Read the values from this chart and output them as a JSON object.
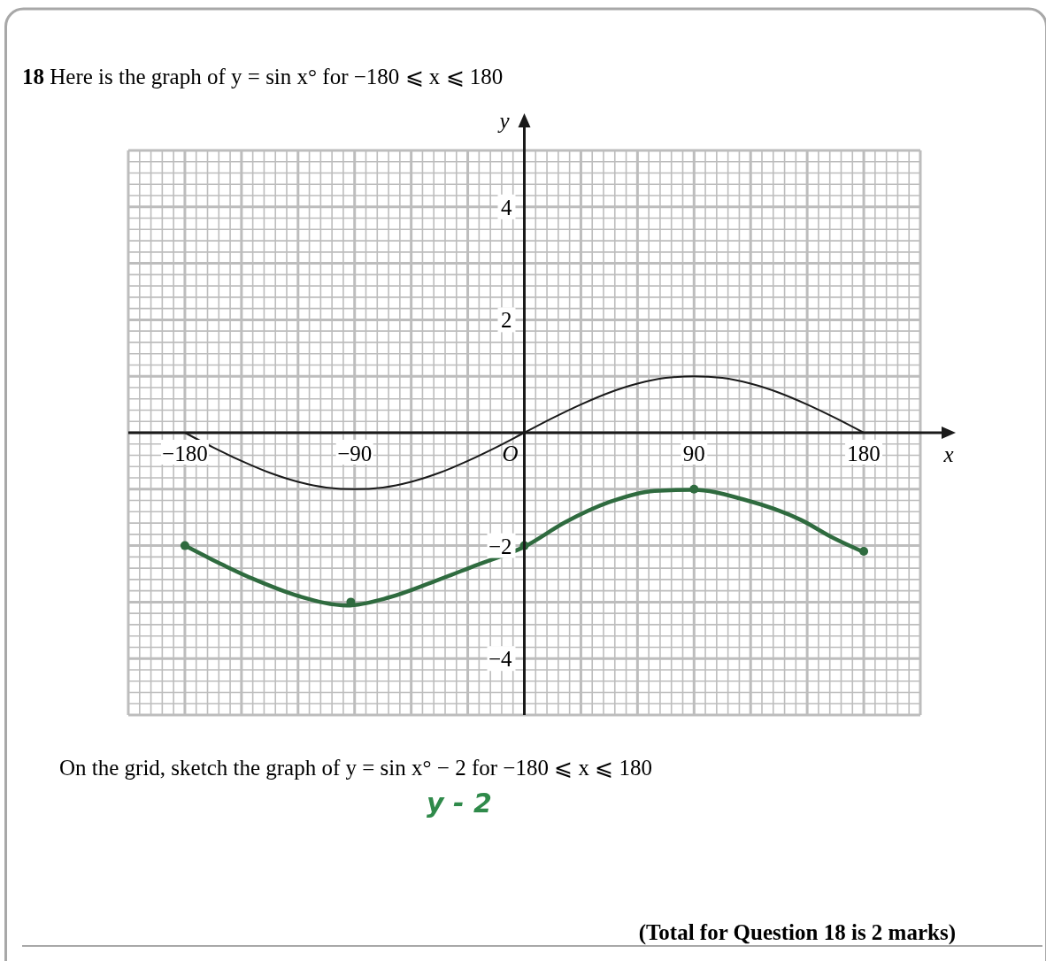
{
  "chart_data": {
    "type": "line",
    "title": "18 Here is the graph of y = sin x° for −180 ⩽ x ⩽ 180",
    "xlabel": "x",
    "ylabel": "y",
    "annotations": [
      "On the grid, sketch the graph of y = sin x° − 2 for −180 ⩽ x ⩽ 180",
      "y - 2",
      "(Total for Question 18 is 2 marks)",
      "O"
    ],
    "xlim": [
      -210,
      210
    ],
    "ylim": [
      -5,
      5
    ],
    "xticks": [
      -180,
      -90,
      90,
      180
    ],
    "yticks": [
      -4,
      -2,
      2,
      4
    ],
    "grid": true,
    "line_style": "solid",
    "series": [
      {
        "color": "#1a1a1a",
        "x": [
          -180,
          -165,
          -150,
          -135,
          -120,
          -105,
          -90,
          -75,
          -60,
          -45,
          -30,
          -15,
          0,
          15,
          30,
          45,
          60,
          75,
          90,
          105,
          120,
          135,
          150,
          165,
          180
        ],
        "values": [
          0,
          -0.26,
          -0.5,
          -0.71,
          -0.87,
          -0.97,
          -1,
          -0.97,
          -0.87,
          -0.71,
          -0.5,
          -0.26,
          0,
          0.26,
          0.5,
          0.71,
          0.87,
          0.97,
          1,
          0.97,
          0.87,
          0.71,
          0.5,
          0.26,
          0
        ]
      },
      {
        "color": "#2f6b3f",
        "x": [
          -180,
          -166,
          -143,
          -119,
          -94,
          -72,
          -49,
          -25,
          0,
          22,
          45,
          69,
          90,
          116,
          147,
          163,
          179
        ],
        "values": [
          -2,
          -2.24,
          -2.6,
          -2.9,
          -3.06,
          -2.92,
          -2.65,
          -2.34,
          -2.02,
          -1.58,
          -1.23,
          -1.03,
          -1.01,
          -1.18,
          -1.55,
          -1.85,
          -2.1
        ]
      },
      {
        "type": "scatter",
        "color": "#2f6b3f",
        "marker": "circle",
        "x": [
          -180,
          -92,
          0,
          90,
          180
        ],
        "values": [
          -2,
          -3,
          -2,
          -1,
          -2.1
        ]
      }
    ]
  }
}
